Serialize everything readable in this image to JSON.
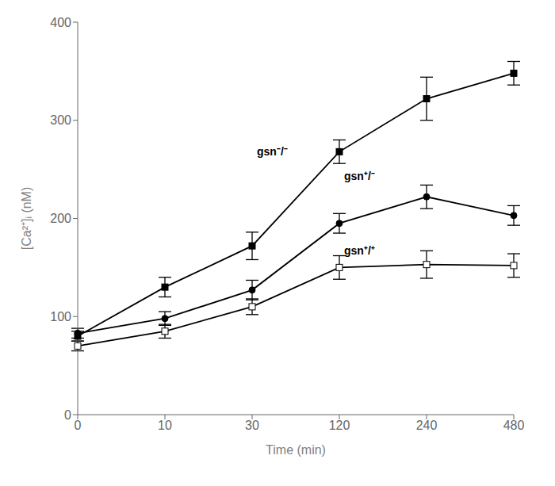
{
  "chart_data": {
    "type": "line",
    "xlabel": "Time (min)",
    "ylabel": "[Ca²⁺]ᵢ (nM)",
    "categories": [
      "0",
      "10",
      "30",
      "120",
      "240",
      "480"
    ],
    "series": [
      {
        "color": "#000000",
        "marker": "square",
        "values": [
          80,
          130,
          172,
          268,
          322,
          348
        ],
        "errors": [
          5,
          10,
          14,
          12,
          22,
          12
        ]
      },
      {
        "color": "#000000",
        "marker": "circle",
        "values": [
          83,
          98,
          127,
          195,
          222,
          203
        ],
        "errors": [
          5,
          7,
          10,
          10,
          12,
          10
        ]
      },
      {
        "color": "#000000",
        "marker": "open_square",
        "values": [
          70,
          85,
          110,
          150,
          153,
          152
        ],
        "errors": [
          5,
          7,
          8,
          12,
          14,
          12
        ]
      }
    ],
    "ylim": [
      0,
      400
    ],
    "yticks": [
      0,
      100,
      200,
      300,
      400
    ],
    "grid": false,
    "annotations": [
      {
        "text": "gsn⁻/⁻",
        "x": "30",
        "y": 268
      },
      {
        "text": "gsn⁺/⁻",
        "x": "120",
        "y": 243
      },
      {
        "text": "gsn⁺/⁺",
        "x": "120",
        "y": 167
      }
    ]
  }
}
